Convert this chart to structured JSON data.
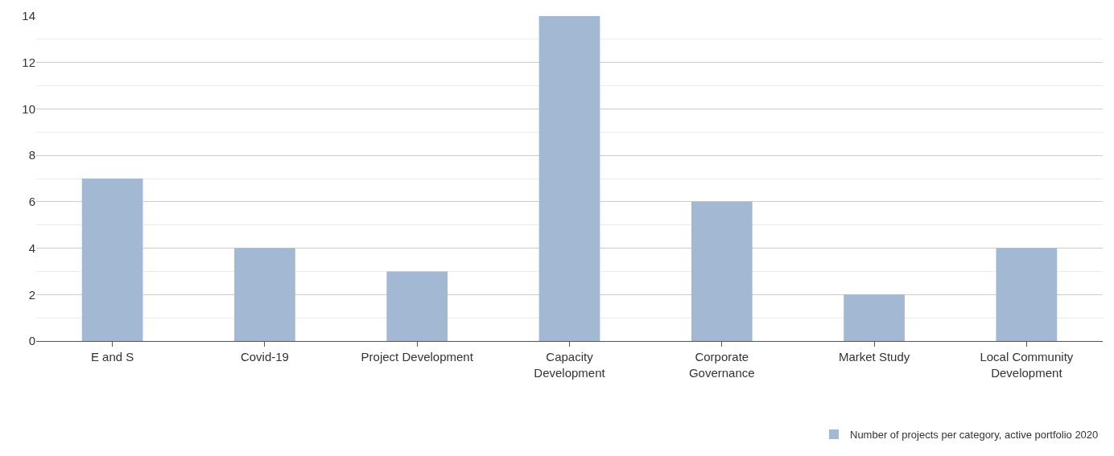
{
  "chart_data": {
    "type": "bar",
    "categories": [
      "E and S",
      "Covid-19",
      "Project Development",
      "Capacity\nDevelopment",
      "Corporate\nGovernance",
      "Market Study",
      "Local Community\nDevelopment"
    ],
    "series": [
      {
        "name": "Number of projects per category, active portfolio 2020",
        "color": "#a3b8d3",
        "values": [
          7,
          4,
          3,
          14,
          6,
          2,
          4
        ]
      }
    ],
    "ylim": [
      0,
      14
    ],
    "yticks": [
      0,
      2,
      4,
      6,
      8,
      10,
      12,
      14
    ],
    "grid": "y",
    "legend": "bottom right"
  }
}
